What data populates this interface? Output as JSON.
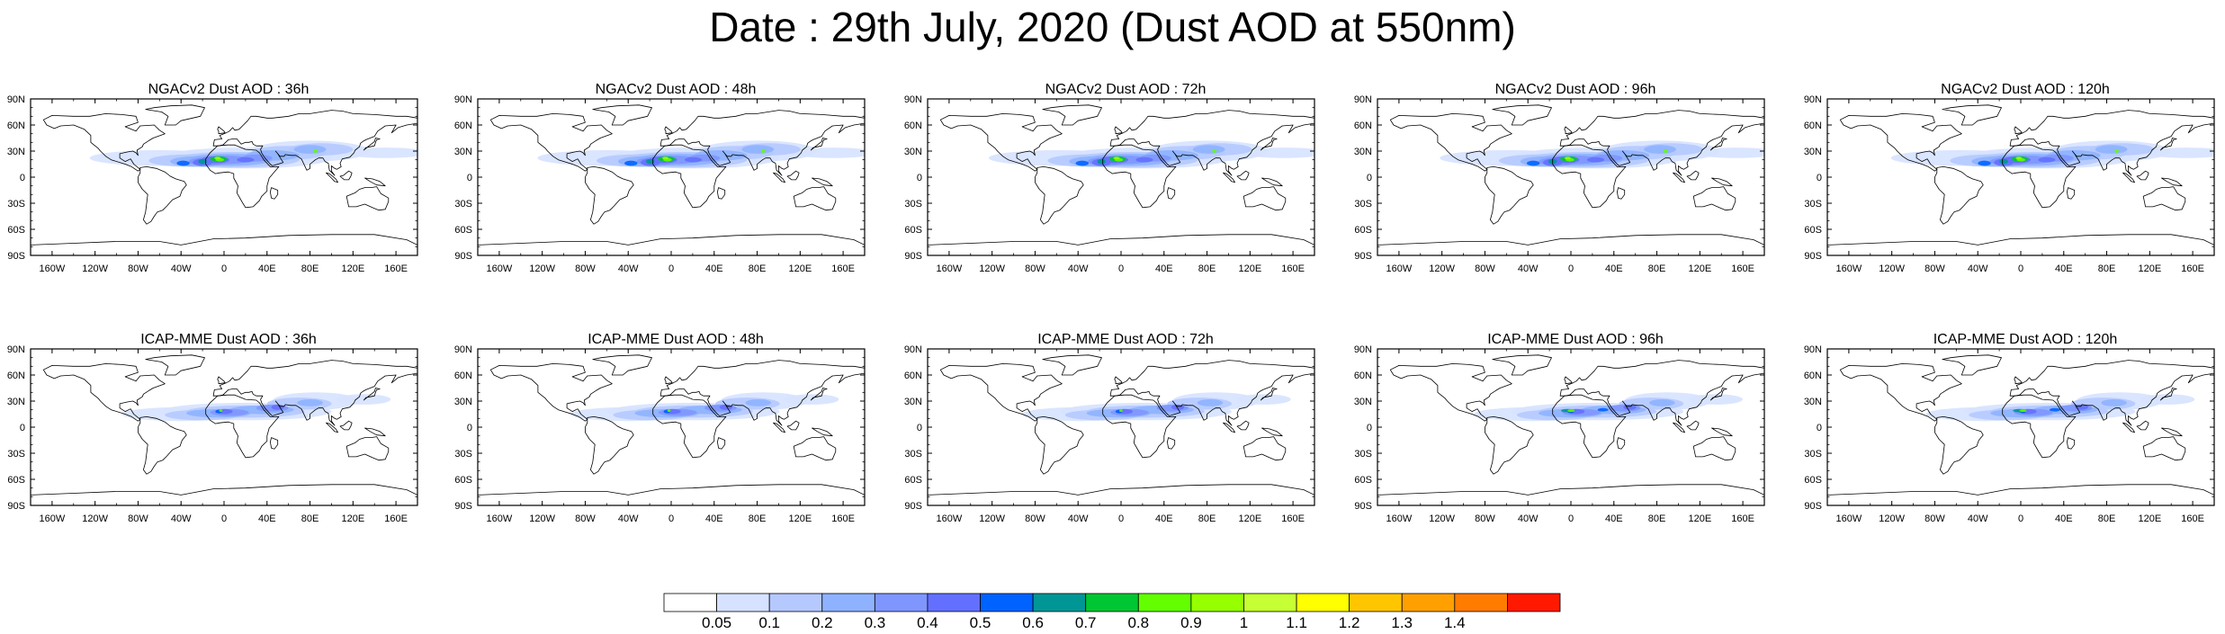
{
  "title": "Date : 29th July, 2020 (Dust AOD at 550nm)",
  "lat_ticks": [
    "90N",
    "60N",
    "30N",
    "0",
    "30S",
    "60S",
    "90S"
  ],
  "lon_ticks": [
    "160W",
    "120W",
    "80W",
    "40W",
    "0",
    "40E",
    "80E",
    "120E",
    "160E"
  ],
  "panels": [
    {
      "title": "NGACv2 Dust AOD : 36h",
      "model": "NGACv2",
      "lead": 36
    },
    {
      "title": "NGACv2 Dust AOD : 48h",
      "model": "NGACv2",
      "lead": 48
    },
    {
      "title": "NGACv2 Dust AOD : 72h",
      "model": "NGACv2",
      "lead": 72
    },
    {
      "title": "NGACv2 Dust AOD : 96h",
      "model": "NGACv2",
      "lead": 96
    },
    {
      "title": "NGACv2 Dust AOD : 120h",
      "model": "NGACv2",
      "lead": 120
    },
    {
      "title": "ICAP-MME Dust AOD : 36h",
      "model": "ICAP-MME",
      "lead": 36
    },
    {
      "title": "ICAP-MME Dust AOD : 48h",
      "model": "ICAP-MME",
      "lead": 48
    },
    {
      "title": "ICAP-MME Dust AOD : 72h",
      "model": "ICAP-MME",
      "lead": 72
    },
    {
      "title": "ICAP-MME Dust AOD : 96h",
      "model": "ICAP-MME",
      "lead": 96
    },
    {
      "title": "ICAP-MME Dust AOD : 120h",
      "model": "ICAP-MME",
      "lead": 120
    }
  ],
  "colorbar": {
    "labels": [
      "0.05",
      "0.1",
      "0.2",
      "0.3",
      "0.4",
      "0.5",
      "0.6",
      "0.7",
      "0.8",
      "0.9",
      "1",
      "1.1",
      "1.2",
      "1.3",
      "1.4"
    ],
    "colors": [
      "#ffffff",
      "#d6e2ff",
      "#b5c9ff",
      "#8eb2ff",
      "#7f96ff",
      "#6370ff",
      "#0063ff",
      "#009696",
      "#00c633",
      "#63ff00",
      "#96ff00",
      "#c6ff33",
      "#ffff00",
      "#ffc600",
      "#ffa000",
      "#ff7c00",
      "#ff1900"
    ]
  }
}
